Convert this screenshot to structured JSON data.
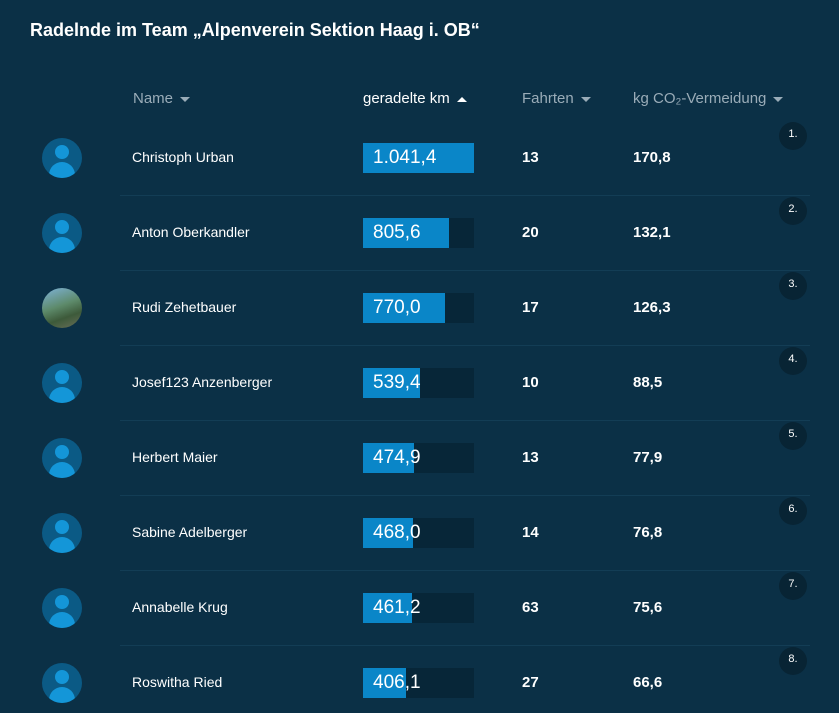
{
  "title": "Radelnde im Team „Alpenverein Sektion Haag i. OB“",
  "header": {
    "name": "Name",
    "km": "geradelte km",
    "rides": "Fahrten",
    "co2": "kg CO₂-Vermeidung"
  },
  "rows": [
    {
      "rank": "1.",
      "name": "Christoph Urban",
      "km": {
        "value": 1041.4,
        "label": "1.041,4"
      },
      "rides": 13,
      "co2": "170,8"
    },
    {
      "rank": "2.",
      "name": "Anton Oberkandler",
      "km": {
        "value": 805.6,
        "label": "805,6"
      },
      "rides": 20,
      "co2": "132,1"
    },
    {
      "rank": "3.",
      "name": "Rudi Zehetbauer",
      "km": {
        "value": 770.0,
        "label": "770,0"
      },
      "rides": 17,
      "co2": "126,3"
    },
    {
      "rank": "4.",
      "name": "Josef123 Anzenberger",
      "km": {
        "value": 539.4,
        "label": "539,4"
      },
      "rides": 10,
      "co2": "88,5"
    },
    {
      "rank": "5.",
      "name": "Herbert Maier",
      "km": {
        "value": 474.9,
        "label": "474,9"
      },
      "rides": 13,
      "co2": "77,9"
    },
    {
      "rank": "6.",
      "name": "Sabine Adelberger",
      "km": {
        "value": 468.0,
        "label": "468,0"
      },
      "rides": 14,
      "co2": "76,8"
    },
    {
      "rank": "7.",
      "name": "Annabelle Krug",
      "km": {
        "value": 461.2,
        "label": "461,2"
      },
      "rides": 63,
      "co2": "75,6"
    },
    {
      "rank": "8.",
      "name": "Roswitha Ried",
      "km": {
        "value": 406.1,
        "label": "406,1"
      },
      "rides": 27,
      "co2": "66,6"
    }
  ]
}
